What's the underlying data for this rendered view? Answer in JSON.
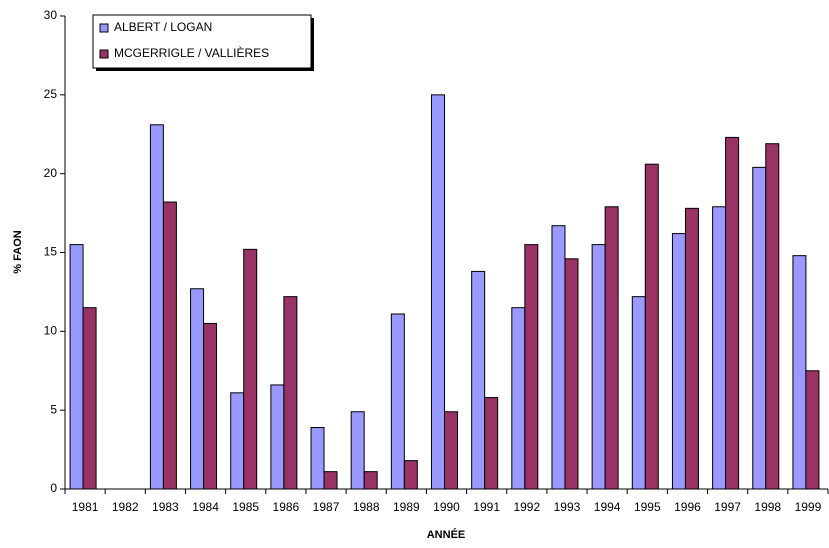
{
  "chart_data": {
    "type": "bar",
    "y_label": "% FAON",
    "x_label": "ANNÉE",
    "categories": [
      "1981",
      "1982",
      "1983",
      "1984",
      "1985",
      "1986",
      "1987",
      "1988",
      "1989",
      "1990",
      "1991",
      "1992",
      "1993",
      "1994",
      "1995",
      "1996",
      "1997",
      "1998",
      "1999"
    ],
    "series": [
      {
        "name": "ALBERT / LOGAN",
        "color": "#9999ff",
        "values": [
          15.5,
          null,
          23.1,
          12.7,
          6.1,
          6.6,
          3.9,
          4.9,
          11.1,
          25.0,
          13.8,
          11.5,
          16.7,
          15.5,
          12.2,
          16.2,
          17.9,
          20.4,
          14.8
        ]
      },
      {
        "name": "MCGERRIGLE / VALLIÈRES",
        "color": "#993366",
        "values": [
          11.5,
          null,
          18.2,
          10.5,
          15.2,
          12.2,
          1.1,
          1.1,
          1.8,
          4.9,
          5.8,
          15.5,
          14.6,
          17.9,
          20.6,
          17.8,
          22.3,
          21.9,
          7.5
        ]
      }
    ],
    "ylim": [
      0,
      30
    ],
    "yticks": [
      0,
      5,
      10,
      15,
      20,
      25,
      30
    ],
    "grid": false,
    "legend": "top-left"
  }
}
